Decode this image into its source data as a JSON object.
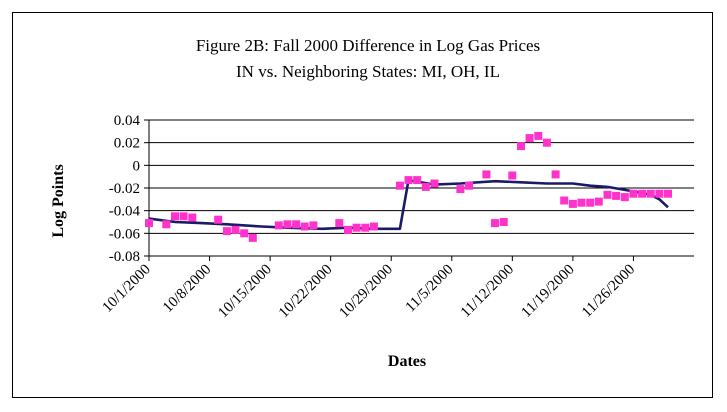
{
  "chart_data": {
    "type": "scatter",
    "title": [
      "Figure 2B: Fall 2000 Difference in Log Gas Prices",
      "IN vs. Neighboring States: MI, OH, IL"
    ],
    "xlabel": "Dates",
    "ylabel": "Log Points",
    "ylim": [
      -0.08,
      0.04
    ],
    "yticks": [
      "0.04",
      "0.02",
      "0",
      "-0.02",
      "-0.04",
      "-0.06",
      "-0.08"
    ],
    "xlim": [
      "2000-10-01",
      "2000-12-03"
    ],
    "xticks": [
      "10/1/2000",
      "10/8/2000",
      "10/15/2000",
      "10/22/2000",
      "10/29/2000",
      "11/5/2000",
      "11/12/2000",
      "11/19/2000",
      "11/26/2000"
    ],
    "grid": "horizontal",
    "colors": {
      "points": "#ff33cc",
      "line": "#1a1a66"
    },
    "series": [
      {
        "kind": "points",
        "x": [
          "2000-10-01",
          "2000-10-03",
          "2000-10-04",
          "2000-10-05",
          "2000-10-06",
          "2000-10-09",
          "2000-10-10",
          "2000-10-11",
          "2000-10-12",
          "2000-10-13",
          "2000-10-16",
          "2000-10-17",
          "2000-10-18",
          "2000-10-19",
          "2000-10-20",
          "2000-10-23",
          "2000-10-24",
          "2000-10-25",
          "2000-10-26",
          "2000-10-27",
          "2000-10-30",
          "2000-10-31",
          "2000-11-01",
          "2000-11-02",
          "2000-11-03",
          "2000-11-06",
          "2000-11-07",
          "2000-11-09",
          "2000-11-10",
          "2000-11-11",
          "2000-11-12",
          "2000-11-13",
          "2000-11-14",
          "2000-11-15",
          "2000-11-16",
          "2000-11-17",
          "2000-11-18",
          "2000-11-19",
          "2000-11-20",
          "2000-11-21",
          "2000-11-22",
          "2000-11-23",
          "2000-11-24",
          "2000-11-25",
          "2000-11-26",
          "2000-11-27",
          "2000-11-28",
          "2000-11-29",
          "2000-11-30"
        ],
        "y": [
          -0.051,
          -0.052,
          -0.045,
          -0.045,
          -0.046,
          -0.048,
          -0.058,
          -0.057,
          -0.06,
          -0.064,
          -0.053,
          -0.052,
          -0.052,
          -0.054,
          -0.053,
          -0.051,
          -0.057,
          -0.055,
          -0.055,
          -0.054,
          -0.018,
          -0.013,
          -0.013,
          -0.019,
          -0.016,
          -0.021,
          -0.018,
          -0.008,
          -0.051,
          -0.05,
          -0.009,
          0.017,
          0.024,
          0.026,
          0.02,
          -0.008,
          -0.031,
          -0.034,
          -0.033,
          -0.033,
          -0.032,
          -0.026,
          -0.027,
          -0.028,
          -0.025,
          -0.025,
          -0.025,
          -0.025,
          -0.025
        ]
      },
      {
        "kind": "line",
        "x": [
          "2000-10-01",
          "2000-10-04",
          "2000-10-07",
          "2000-10-10",
          "2000-10-14",
          "2000-10-17",
          "2000-10-21",
          "2000-10-24",
          "2000-10-27",
          "2000-10-30",
          "2000-10-31",
          "2000-11-03",
          "2000-11-06",
          "2000-11-10",
          "2000-11-13",
          "2000-11-16",
          "2000-11-19",
          "2000-11-21",
          "2000-11-23",
          "2000-11-26",
          "2000-11-28",
          "2000-11-29",
          "2000-11-30"
        ],
        "y": [
          -0.047,
          -0.05,
          -0.051,
          -0.052,
          -0.054,
          -0.055,
          -0.056,
          -0.055,
          -0.056,
          -0.056,
          -0.013,
          -0.017,
          -0.016,
          -0.014,
          -0.015,
          -0.016,
          -0.016,
          -0.018,
          -0.019,
          -0.023,
          -0.026,
          -0.03,
          -0.037
        ]
      }
    ]
  }
}
